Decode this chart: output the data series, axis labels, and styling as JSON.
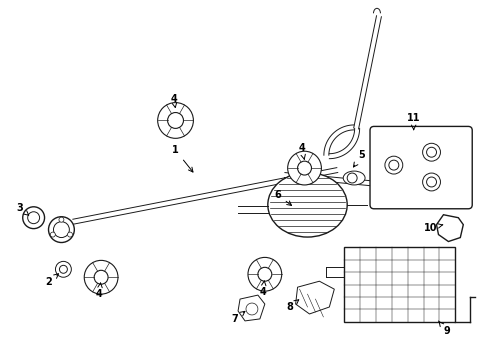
{
  "background_color": "#ffffff",
  "line_color": "#1a1a1a",
  "text_color": "#000000",
  "fig_width": 4.89,
  "fig_height": 3.6,
  "dpi": 100,
  "parts": {
    "pipe_color": "#1a1a1a",
    "lw_pipe": 1.5,
    "lw_thin": 0.7,
    "lw_med": 1.0
  }
}
